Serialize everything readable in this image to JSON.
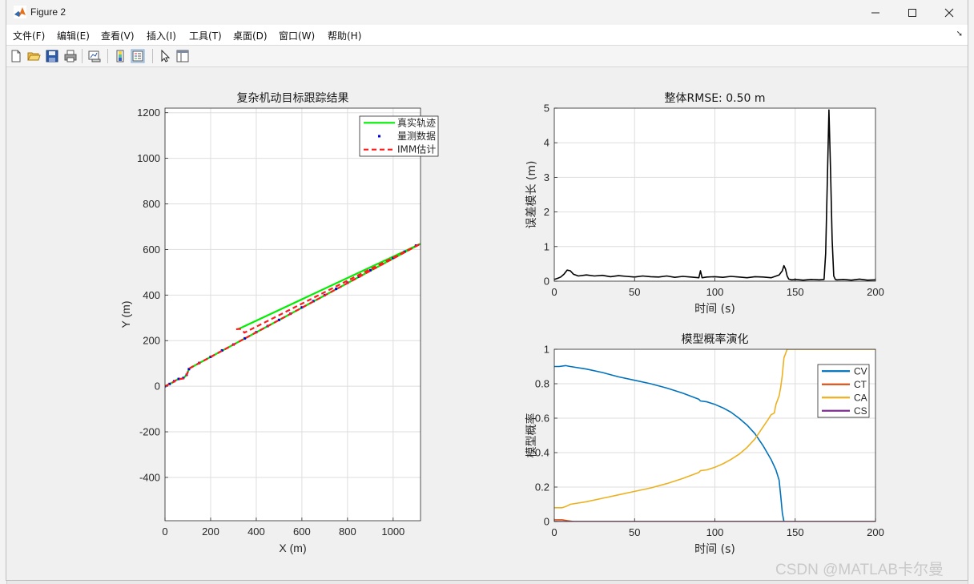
{
  "window": {
    "title": "Figure 2"
  },
  "menu": [
    "文件(F)",
    "编辑(E)",
    "查看(V)",
    "插入(I)",
    "工具(T)",
    "桌面(D)",
    "窗口(W)",
    "帮助(H)"
  ],
  "toolbar": [
    "new-figure-icon",
    "open-file-icon",
    "save-icon",
    "print-icon",
    "link-plot-icon",
    "colorbar-icon",
    "legend-icon",
    "pointer-icon",
    "property-inspector-icon"
  ],
  "watermark": "CSDN @MATLAB卡尔曼",
  "chart_data": [
    {
      "type": "line",
      "title": "复杂机动目标跟踪结果",
      "xlabel": "X (m)",
      "ylabel": "Y (m)",
      "xlim": [
        0,
        1120
      ],
      "ylim": [
        -590,
        1220
      ],
      "xticks": [
        0,
        200,
        400,
        600,
        800,
        1000
      ],
      "yticks": [
        -400,
        -200,
        0,
        200,
        400,
        600,
        800,
        1000,
        1200
      ],
      "grid": true,
      "legend": {
        "placement": "top-right",
        "entries": [
          "真实轨迹",
          "量测数据",
          "IMM估计"
        ]
      },
      "series": [
        {
          "name": "真实轨迹",
          "color": "#00ee00",
          "style": "solid",
          "x": [
            0,
            30,
            55,
            80,
            95,
            103,
            110,
            1120
          ],
          "y": [
            0,
            15,
            30,
            35,
            50,
            70,
            80,
            625
          ]
        },
        {
          "name": "真实轨迹",
          "color": "#00ee00",
          "style": "solid",
          "x": [
            320,
            1120
          ],
          "y": [
            250,
            625
          ]
        },
        {
          "name": "量测数据",
          "color": "#0000dd",
          "style": "points",
          "x": [
            0,
            20,
            40,
            60,
            80,
            95,
            105,
            150,
            200,
            250,
            300,
            350,
            400,
            450,
            500,
            550,
            600,
            650,
            700,
            750,
            800,
            850,
            900,
            950,
            1000,
            1050,
            1100
          ],
          "y": [
            0,
            10,
            22,
            32,
            36,
            50,
            75,
            102,
            129,
            157,
            183,
            210,
            237,
            264,
            291,
            318,
            346,
            373,
            400,
            427,
            454,
            481,
            509,
            536,
            563,
            590,
            617
          ]
        },
        {
          "name": "IMM估计",
          "color": "#ff1a1a",
          "style": "dashed",
          "x": [
            0,
            30,
            55,
            80,
            95,
            103,
            110,
            1120
          ],
          "y": [
            0,
            14,
            30,
            34,
            50,
            70,
            80,
            625
          ]
        },
        {
          "name": "IMM估计",
          "color": "#ff1a1a",
          "style": "dashed",
          "x": [
            312,
            325,
            338,
            348,
            1120
          ],
          "y": [
            250,
            252,
            248,
            235,
            625
          ]
        }
      ]
    },
    {
      "type": "line",
      "title": "整体RMSE: 0.50 m",
      "xlabel": "时间 (s)",
      "ylabel": "误差模长 (m)",
      "xlim": [
        0,
        200
      ],
      "ylim": [
        0,
        5
      ],
      "xticks": [
        0,
        50,
        100,
        150,
        200
      ],
      "yticks": [
        0,
        1,
        2,
        3,
        4,
        5
      ],
      "grid": true,
      "series": [
        {
          "color": "#000000",
          "x": [
            0,
            2,
            4,
            6,
            8,
            10,
            12,
            15,
            20,
            25,
            30,
            35,
            40,
            45,
            50,
            55,
            60,
            65,
            70,
            75,
            80,
            85,
            90,
            91,
            92,
            95,
            100,
            105,
            110,
            115,
            120,
            125,
            130,
            135,
            140,
            142,
            143,
            144,
            145,
            146,
            148,
            150,
            155,
            160,
            165,
            168,
            169,
            170,
            171,
            172,
            173,
            174,
            175,
            176,
            180,
            185,
            190,
            195,
            200
          ],
          "y": [
            0.05,
            0.08,
            0.12,
            0.2,
            0.32,
            0.3,
            0.2,
            0.15,
            0.18,
            0.15,
            0.17,
            0.13,
            0.16,
            0.14,
            0.12,
            0.15,
            0.13,
            0.12,
            0.15,
            0.11,
            0.14,
            0.12,
            0.1,
            0.3,
            0.1,
            0.12,
            0.13,
            0.11,
            0.14,
            0.12,
            0.1,
            0.13,
            0.12,
            0.1,
            0.18,
            0.3,
            0.45,
            0.35,
            0.15,
            0.06,
            0.04,
            0.05,
            0.03,
            0.05,
            0.04,
            0.05,
            0.8,
            2.8,
            4.95,
            3.2,
            1.2,
            0.15,
            0.05,
            0.04,
            0.05,
            0.03,
            0.06,
            0.03,
            0.04
          ]
        }
      ]
    },
    {
      "type": "line",
      "title": "模型概率演化",
      "xlabel": "时间 (s)",
      "ylabel": "模型概率",
      "xlim": [
        0,
        200
      ],
      "ylim": [
        0,
        1
      ],
      "xticks": [
        0,
        50,
        100,
        150,
        200
      ],
      "yticks": [
        0,
        0.2,
        0.4,
        0.6,
        0.8,
        1
      ],
      "grid": true,
      "legend": {
        "placement": "top-right",
        "entries": [
          "CV",
          "CT",
          "CA",
          "CS"
        ]
      },
      "series": [
        {
          "name": "CV",
          "color": "#0072bd",
          "x": [
            0,
            3,
            7,
            10,
            20,
            30,
            40,
            50,
            60,
            70,
            80,
            90,
            91,
            95,
            100,
            105,
            110,
            115,
            120,
            125,
            130,
            135,
            138,
            140,
            141,
            142,
            143
          ],
          "y": [
            0.9,
            0.9,
            0.905,
            0.9,
            0.885,
            0.865,
            0.84,
            0.82,
            0.8,
            0.775,
            0.745,
            0.71,
            0.7,
            0.695,
            0.68,
            0.66,
            0.635,
            0.6,
            0.56,
            0.51,
            0.44,
            0.36,
            0.3,
            0.24,
            0.15,
            0.05,
            0
          ]
        },
        {
          "name": "CT",
          "color": "#d95319",
          "x": [
            0,
            5,
            8,
            12,
            200
          ],
          "y": [
            0.01,
            0.01,
            0.005,
            0,
            0
          ]
        },
        {
          "name": "CA",
          "color": "#edb120",
          "x": [
            0,
            5,
            8,
            10,
            20,
            30,
            40,
            50,
            60,
            70,
            80,
            90,
            91,
            95,
            100,
            105,
            110,
            115,
            120,
            125,
            130,
            133,
            135,
            137,
            138,
            140,
            141,
            142,
            143,
            145,
            200
          ],
          "y": [
            0.08,
            0.08,
            0.09,
            0.1,
            0.115,
            0.135,
            0.155,
            0.175,
            0.195,
            0.22,
            0.25,
            0.285,
            0.295,
            0.3,
            0.315,
            0.335,
            0.36,
            0.39,
            0.43,
            0.48,
            0.55,
            0.59,
            0.62,
            0.63,
            0.68,
            0.73,
            0.78,
            0.85,
            0.95,
            1,
            1
          ]
        },
        {
          "name": "CS",
          "color": "#7e2f8e",
          "x": [
            0,
            200
          ],
          "y": [
            0,
            0
          ]
        }
      ]
    }
  ]
}
